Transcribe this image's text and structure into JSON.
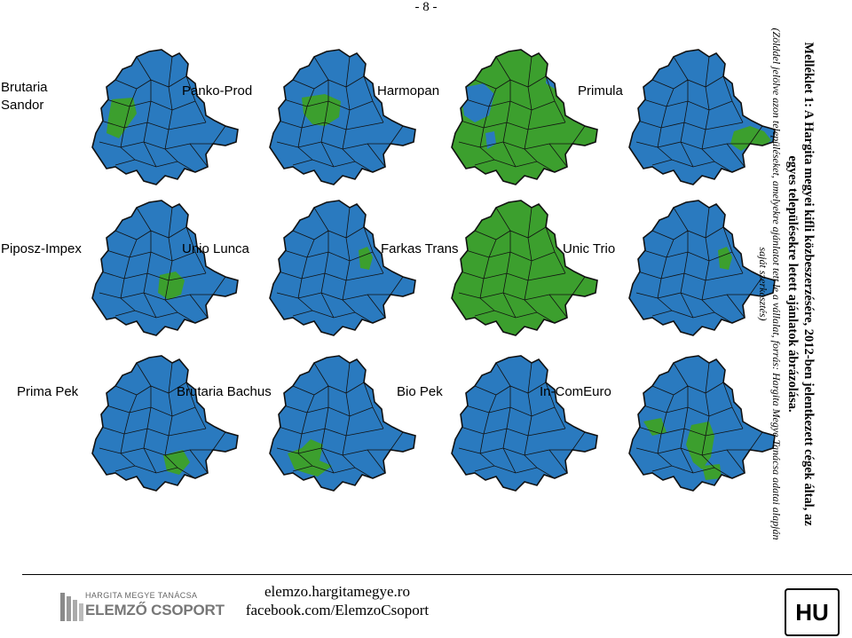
{
  "page_number": "- 8 -",
  "colors": {
    "no_bid": "#2a7abf",
    "bid": "#3c9f2e",
    "border": "#111111"
  },
  "maps": [
    {
      "company": "Brutaria\nSandor",
      "bid_regions": [
        "upper-left"
      ]
    },
    {
      "company": "Panko-Prod",
      "bid_regions": [
        "upper-center"
      ]
    },
    {
      "company": "Harmopan",
      "bid_regions": [
        "most"
      ]
    },
    {
      "company": "Primula",
      "bid_regions": [
        "lower-right"
      ]
    },
    {
      "company": "Piposz-Impex",
      "bid_regions": [
        "middle-left"
      ]
    },
    {
      "company": "Unio Lunca",
      "bid_regions": [
        "small-right"
      ]
    },
    {
      "company": "Farkas Trans",
      "bid_regions": [
        "all"
      ]
    },
    {
      "company": "Unic Trio",
      "bid_regions": [
        "small-right"
      ]
    },
    {
      "company": "Prima Pek",
      "bid_regions": [
        "lower-center"
      ]
    },
    {
      "company": "Brutaria Bachus",
      "bid_regions": [
        "lower-left"
      ]
    },
    {
      "company": "Bio Pek",
      "bid_regions": []
    },
    {
      "company": "In-ComEuro",
      "bid_regions": [
        "lower-mixed"
      ]
    }
  ],
  "caption": {
    "title": "Melléklet 1: A Hargita megyei kifli közbeszerzésére, 2012-ben jelentkezett cégek által, az egyes településekre letett ajánlatok ábrázolása.",
    "note": "(Zölddel jelölve azon településeket, amelyekre ajánlatot tett le a vállalat, forrás: Hargita Megye Tanácsa adatai alapján saját szerkesztés)"
  },
  "footer": {
    "logo_line1": "HARGITA MEGYE TANÁCSA",
    "logo_line2": "ELEMZŐ CSOPORT",
    "website": "elemzo.hargitamegye.ro",
    "facebook": "facebook.com/ElemzoCsoport",
    "language_badge": "HU"
  }
}
